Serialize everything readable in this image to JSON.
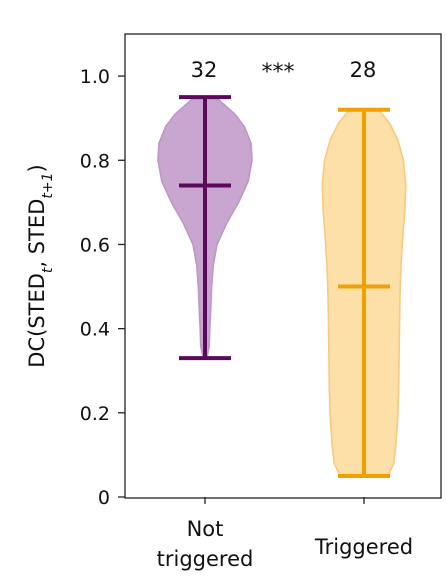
{
  "chart_data": {
    "type": "violin",
    "ylabel_parts": [
      "DC(STED",
      "t",
      ", STED",
      "t+1",
      ")"
    ],
    "ylim": [
      0,
      1.1
    ],
    "yticks": [
      0,
      0.2,
      0.4,
      0.6,
      0.8,
      1.0
    ],
    "ytick_labels": [
      "0",
      "0.2",
      "0.4",
      "0.6",
      "0.8",
      "1.0"
    ],
    "significance": "***",
    "groups": [
      {
        "label_lines": [
          "Not",
          "triggered"
        ],
        "n": "32",
        "min": 0.33,
        "max": 0.95,
        "median": 0.74,
        "fill": "#c9a6cf",
        "stroke": "#bf96c6",
        "line_color": "#5a0a5a",
        "density": [
          [
            0.33,
            0.04
          ],
          [
            0.36,
            0.09
          ],
          [
            0.4,
            0.1
          ],
          [
            0.45,
            0.12
          ],
          [
            0.5,
            0.14
          ],
          [
            0.55,
            0.17
          ],
          [
            0.6,
            0.25
          ],
          [
            0.65,
            0.45
          ],
          [
            0.7,
            0.7
          ],
          [
            0.75,
            0.9
          ],
          [
            0.8,
            0.98
          ],
          [
            0.84,
            0.96
          ],
          [
            0.88,
            0.82
          ],
          [
            0.91,
            0.62
          ],
          [
            0.93,
            0.42
          ],
          [
            0.95,
            0.22
          ]
        ]
      },
      {
        "label_lines": [
          "Triggered"
        ],
        "n": "28",
        "min": 0.05,
        "max": 0.92,
        "median": 0.5,
        "fill": "#fddfa8",
        "stroke": "#f8c982",
        "line_color": "#f0a000",
        "density": [
          [
            0.05,
            0.5
          ],
          [
            0.08,
            0.62
          ],
          [
            0.12,
            0.66
          ],
          [
            0.18,
            0.7
          ],
          [
            0.25,
            0.72
          ],
          [
            0.32,
            0.73
          ],
          [
            0.4,
            0.74
          ],
          [
            0.48,
            0.75
          ],
          [
            0.55,
            0.77
          ],
          [
            0.62,
            0.81
          ],
          [
            0.68,
            0.85
          ],
          [
            0.74,
            0.87
          ],
          [
            0.8,
            0.82
          ],
          [
            0.85,
            0.7
          ],
          [
            0.89,
            0.52
          ],
          [
            0.92,
            0.3
          ]
        ]
      }
    ]
  }
}
